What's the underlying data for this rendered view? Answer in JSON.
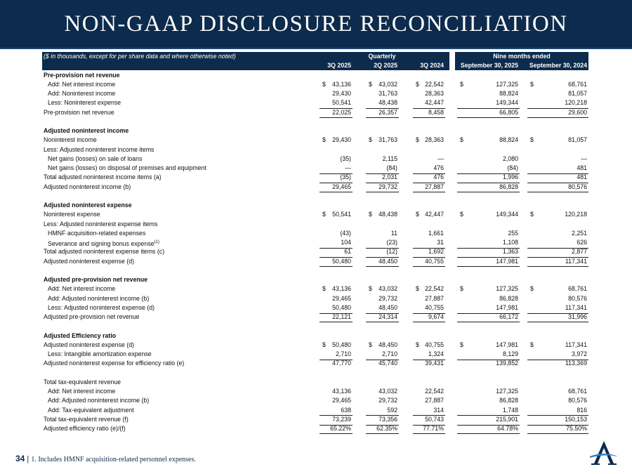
{
  "header": {
    "title": "NON-GAAP DISCLOSURE RECONCILIATION"
  },
  "table": {
    "caption": "($ in thousands, except for per share data and where otherwise noted)",
    "groups": [
      {
        "label": "Quarterly",
        "columns": [
          "3Q 2025",
          "2Q 2025",
          "3Q 2024"
        ]
      },
      {
        "label": "Nine months ended",
        "columns": [
          "September 30, 2025",
          "September 30, 2024"
        ]
      }
    ],
    "sections": [
      [
        {
          "label": "Pre-provision net revenue",
          "bold": true
        },
        {
          "label": "Add: Net interest income",
          "indent": true,
          "currency": "$",
          "cells": [
            "43,136",
            "43,032",
            "22,542",
            "127,325",
            "68,761"
          ]
        },
        {
          "label": "Add: Noninterest income",
          "indent": true,
          "cells": [
            "29,430",
            "31,763",
            "28,363",
            "88,824",
            "81,057"
          ]
        },
        {
          "label": "Less: Noninterest expense",
          "indent": true,
          "cells": [
            "50,541",
            "48,438",
            "42,447",
            "149,344",
            "120,218"
          ]
        },
        {
          "label": "Pre-provision net revenue",
          "rule": "both",
          "cells": [
            "22,025",
            "26,357",
            "8,458",
            "66,805",
            "29,600"
          ]
        }
      ],
      [
        {
          "label": "Adjusted noninterest income",
          "bold": true
        },
        {
          "label": "Noninterest income",
          "currency": "$",
          "cells": [
            "29,430",
            "31,763",
            "28,363",
            "88,824",
            "81,057"
          ]
        },
        {
          "label": "Less: Adjusted noninterest income items"
        },
        {
          "label": "Net gains (losses) on sale of loans",
          "indent": true,
          "cells": [
            "(35)",
            "2,115",
            "—",
            "2,080",
            "—"
          ]
        },
        {
          "label": "Net gains (losses) on disposal of premises and equipment",
          "indent": true,
          "cells": [
            "—",
            "(84)",
            "476",
            "(84)",
            "481"
          ]
        },
        {
          "label": "Total adjusted noninterest income items (a)",
          "rule": "above",
          "cells": [
            "(35)",
            "2,031",
            "476",
            "1,996",
            "481"
          ]
        },
        {
          "label": "Adjusted noninterest income (b)",
          "rule": "both",
          "cells": [
            "29,465",
            "29,732",
            "27,887",
            "86,828",
            "80,576"
          ]
        }
      ],
      [
        {
          "label": "Adjusted noninterest expense",
          "bold": true
        },
        {
          "label": "Noninterest expense",
          "currency": "$",
          "cells": [
            "50,541",
            "48,438",
            "42,447",
            "149,344",
            "120,218"
          ]
        },
        {
          "label": "Less: Adjusted noninterest expense items"
        },
        {
          "label": "HMNF acquisition-related expenses",
          "indent": true,
          "cells": [
            "(43)",
            "11",
            "1,661",
            "255",
            "2,251"
          ]
        },
        {
          "label": "Severance and signing bonus expense",
          "note": "(1)",
          "indent": true,
          "cells": [
            "104",
            "(23)",
            "31",
            "1,108",
            "626"
          ]
        },
        {
          "label": "Total adjusted noninterest expense items (c)",
          "rule": "above",
          "cells": [
            "61",
            "(12)",
            "1,692",
            "1,363",
            "2,877"
          ]
        },
        {
          "label": "Adjusted noninterest expense (d)",
          "rule": "both",
          "cells": [
            "50,480",
            "48,450",
            "40,755",
            "147,981",
            "117,341"
          ]
        }
      ],
      [
        {
          "label": "Adjusted pre-provision net revenue",
          "bold": true
        },
        {
          "label": "Add: Net interest income",
          "indent": true,
          "currency": "$",
          "cells": [
            "43,136",
            "43,032",
            "22,542",
            "127,325",
            "68,761"
          ]
        },
        {
          "label": "Add: Adjusted noninterest income (b)",
          "indent": true,
          "cells": [
            "29,465",
            "29,732",
            "27,887",
            "86,828",
            "80,576"
          ]
        },
        {
          "label": "Less: Adjusted noninterest expense (d)",
          "indent": true,
          "cells": [
            "50,480",
            "48,450",
            "40,755",
            "147,981",
            "117,341"
          ]
        },
        {
          "label": "Adjusted pre-provision net revenue",
          "rule": "both",
          "cells": [
            "22,121",
            "24,314",
            "9,674",
            "66,172",
            "31,996"
          ]
        }
      ],
      [
        {
          "label": "Adjusted Efficiency ratio",
          "bold": true
        },
        {
          "label": "Adjusted noninterest expense (d)",
          "currency": "$",
          "cells": [
            "50,480",
            "48,450",
            "40,755",
            "147,981",
            "117,341"
          ]
        },
        {
          "label": "Less: Intangible amortization expense",
          "indent": true,
          "cells": [
            "2,710",
            "2,710",
            "1,324",
            "8,129",
            "3,972"
          ]
        },
        {
          "label": "Adjusted noninterest expense for efficiency ratio (e)",
          "rule": "above",
          "cells": [
            "47,770",
            "45,740",
            "39,431",
            "139,852",
            "113,369"
          ]
        }
      ],
      [
        {
          "label": "Total tax-equivalent revenue"
        },
        {
          "label": "Add: Net interest income",
          "indent": true,
          "cells": [
            "43,136",
            "43,032",
            "22,542",
            "127,325",
            "68,761"
          ]
        },
        {
          "label": "Add: Adjusted noninterest income (b)",
          "indent": true,
          "cells": [
            "29,465",
            "29,732",
            "27,887",
            "86,828",
            "80,576"
          ]
        },
        {
          "label": "Add: Tax-equivalent adjustment",
          "indent": true,
          "cells": [
            "638",
            "592",
            "314",
            "1,748",
            "816"
          ]
        },
        {
          "label": "Total tax-equivalent revenue (f)",
          "rule": "above",
          "cells": [
            "73,239",
            "73,356",
            "50,743",
            "215,901",
            "150,153"
          ]
        },
        {
          "label": "Adjusted efficiency ratio (e)/(f)",
          "rule": "both",
          "cells": [
            "65.22%",
            "62.35%",
            "77.71%",
            "64.78%",
            "75.50%"
          ]
        }
      ]
    ]
  },
  "footer": {
    "page": "34",
    "note": "1. Includes HMNF acquisition-related personnel expenses."
  }
}
